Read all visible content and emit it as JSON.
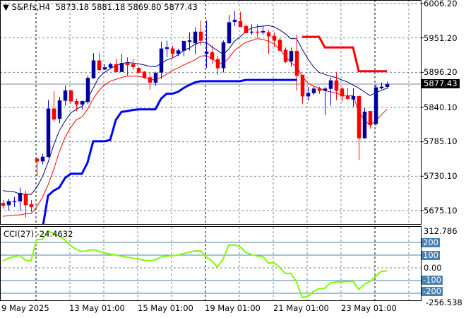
{
  "header": {
    "symbol": "S&P.fs,H4",
    "open": "5873.18",
    "high": "5881.18",
    "low": "5869.80",
    "close": "5877.43",
    "menu_icon": "triangle-down-icon"
  },
  "price_axis": {
    "labels": [
      "6006.20",
      "5951.20",
      "5896.20",
      "5840.10",
      "5785.10",
      "5730.10",
      "5675.10"
    ],
    "current": "5877.43"
  },
  "cci": {
    "label": "CCI(27) -24.4632",
    "max": "312.786",
    "min": "-256.538",
    "levels": [
      "200",
      "100",
      "0.00",
      "-100",
      "-200"
    ]
  },
  "time_axis": {
    "labels": [
      "9 May 2025",
      "13 May 01:00",
      "15 May 01:00",
      "19 May 01:00",
      "21 May 01:00",
      "23 May 01:00"
    ]
  },
  "colors": {
    "bull": "#00008b",
    "bear": "#ff0000",
    "ma_fast": "#00007f",
    "ma_slow": "#ff0000",
    "step_blue": "#0000ff",
    "step_red": "#ff0000",
    "cci": "#7cfc00",
    "level": "#4682b4",
    "grid": "#778899"
  },
  "chart_data": [
    {
      "type": "candlestick",
      "title": "S&P.fs,H4",
      "ylim": [
        5675.1,
        6006.2
      ],
      "grid": true,
      "x_tick_labels": [
        "9 May 2025",
        "13 May 01:00",
        "15 May 01:00",
        "19 May 01:00",
        "21 May 01:00",
        "23 May 01:00"
      ],
      "candles_ohlc": [
        [
          5687,
          5692,
          5678,
          5683
        ],
        [
          5684,
          5694,
          5675,
          5690
        ],
        [
          5689,
          5697,
          5681,
          5690
        ],
        [
          5690,
          5712,
          5675,
          5703
        ],
        [
          5702,
          5707,
          5664,
          5684
        ],
        [
          5685,
          5692,
          5673,
          5681
        ],
        [
          5758,
          5759,
          5730,
          5754
        ],
        [
          5754,
          5766,
          5749,
          5761
        ],
        [
          5761,
          5852,
          5760,
          5838
        ],
        [
          5838,
          5866,
          5817,
          5821
        ],
        [
          5822,
          5857,
          5815,
          5851
        ],
        [
          5851,
          5875,
          5843,
          5867
        ],
        [
          5867,
          5868,
          5846,
          5850
        ],
        [
          5850,
          5854,
          5834,
          5845
        ],
        [
          5845,
          5851,
          5837,
          5850
        ],
        [
          5849,
          5891,
          5845,
          5887
        ],
        [
          5887,
          5927,
          5886,
          5915
        ],
        [
          5915,
          5927,
          5899,
          5900
        ],
        [
          5901,
          5909,
          5900,
          5904
        ],
        [
          5904,
          5911,
          5902,
          5909
        ],
        [
          5909,
          5918,
          5896,
          5897
        ],
        [
          5897,
          5926,
          5897,
          5911
        ],
        [
          5911,
          5920,
          5891,
          5908
        ],
        [
          5909,
          5918,
          5900,
          5905
        ],
        [
          5903,
          5905,
          5894,
          5896
        ],
        [
          5897,
          5898,
          5886,
          5888
        ],
        [
          5888,
          5896,
          5868,
          5880
        ],
        [
          5880,
          5897,
          5875,
          5895
        ],
        [
          5896,
          5945,
          5886,
          5934
        ],
        [
          5934,
          5947,
          5920,
          5936
        ],
        [
          5934,
          5939,
          5920,
          5926
        ],
        [
          5926,
          5934,
          5922,
          5931
        ],
        [
          5931,
          5947,
          5922,
          5946
        ],
        [
          5945,
          5960,
          5931,
          5947
        ],
        [
          5943,
          5968,
          5925,
          5961
        ],
        [
          5961,
          5979,
          5939,
          5947
        ],
        [
          5926,
          5979,
          5903,
          5929
        ],
        [
          5928,
          5939,
          5909,
          5917
        ],
        [
          5917,
          5922,
          5892,
          5903
        ],
        [
          5903,
          5947,
          5896,
          5944
        ],
        [
          5943,
          5988,
          5942,
          5976
        ],
        [
          5977,
          5994,
          5970,
          5980
        ],
        [
          5978,
          5993,
          5969,
          5969
        ],
        [
          5970,
          5973,
          5959,
          5959
        ],
        [
          5960,
          5973,
          5956,
          5961
        ],
        [
          5961,
          5973,
          5952,
          5960
        ],
        [
          5960,
          5971,
          5956,
          5962
        ],
        [
          5960,
          5964,
          5926,
          5954
        ],
        [
          5954,
          5960,
          5937,
          5947
        ],
        [
          5948,
          5951,
          5931,
          5931
        ],
        [
          5932,
          5936,
          5911,
          5913
        ],
        [
          5914,
          5936,
          5905,
          5930
        ],
        [
          5930,
          5956,
          5867,
          5891
        ],
        [
          5892,
          5892,
          5846,
          5858
        ],
        [
          5858,
          5873,
          5851,
          5863
        ],
        [
          5863,
          5873,
          5860,
          5870
        ],
        [
          5870,
          5873,
          5862,
          5867
        ],
        [
          5867,
          5873,
          5828,
          5870
        ],
        [
          5870,
          5888,
          5843,
          5883
        ],
        [
          5883,
          5896,
          5852,
          5867
        ],
        [
          5870,
          5873,
          5849,
          5858
        ],
        [
          5858,
          5871,
          5852,
          5854
        ],
        [
          5853,
          5871,
          5841,
          5858
        ],
        [
          5858,
          5859,
          5756,
          5791
        ],
        [
          5791,
          5839,
          5790,
          5833
        ],
        [
          5834,
          5834,
          5806,
          5812
        ],
        [
          5814,
          5877,
          5811,
          5872
        ],
        [
          5871,
          5880,
          5869,
          5873
        ],
        [
          5873.18,
          5881.18,
          5869.8,
          5877.43
        ]
      ],
      "ma_fast": [
        5707,
        5706,
        5705,
        5702,
        5701,
        5701,
        5712,
        5729,
        5752,
        5780,
        5803,
        5818,
        5831,
        5837,
        5842,
        5854,
        5871,
        5888,
        5896,
        5902,
        5907,
        5910,
        5912,
        5911,
        5910,
        5908,
        5906,
        5905,
        5910,
        5916,
        5919,
        5924,
        5931,
        5935,
        5941,
        5944,
        5944,
        5937,
        5931,
        5925,
        5933,
        5946,
        5953,
        5961,
        5967,
        5969,
        5970,
        5971,
        5969,
        5964,
        5958,
        5950,
        5950,
        5933,
        5918,
        5905,
        5896,
        5893,
        5890,
        5888,
        5884,
        5881,
        5876,
        5871,
        5865,
        5859,
        5864,
        5867,
        5871
      ],
      "ma_slow": [
        5666,
        5667,
        5668,
        5668,
        5670,
        5670,
        5681,
        5696,
        5716,
        5741,
        5769,
        5792,
        5808,
        5820,
        5825,
        5837,
        5854,
        5867,
        5876,
        5882,
        5885,
        5888,
        5890,
        5890,
        5890,
        5888,
        5885,
        5884,
        5888,
        5893,
        5899,
        5903,
        5908,
        5912,
        5916,
        5922,
        5923,
        5918,
        5912,
        5910,
        5919,
        5931,
        5938,
        5944,
        5947,
        5950,
        5949,
        5946,
        5942,
        5933,
        5922,
        5912,
        5905,
        5890,
        5879,
        5874,
        5871,
        5867,
        5865,
        5863,
        5860,
        5859,
        5859,
        5834,
        5820,
        5812,
        5818,
        5828,
        5837
      ],
      "step_blue": [
        null,
        null,
        null,
        null,
        null,
        null,
        null,
        5645,
        5699,
        5707,
        5712,
        5727,
        5734,
        5734,
        5734,
        5752,
        5786,
        5786,
        5786,
        5788,
        5820,
        5833,
        5834,
        5836,
        5837,
        5837,
        5837,
        5837,
        5854,
        5862,
        5862,
        5865,
        5871,
        5876,
        5880,
        5882,
        5882,
        5882,
        5882,
        5882,
        5882,
        5882,
        5882,
        5884,
        5884,
        5884,
        5884,
        5884,
        5884,
        5884,
        5884,
        5884,
        5884,
        null,
        null,
        null,
        null,
        null,
        null,
        null,
        null,
        null,
        null,
        null,
        null,
        null,
        null,
        null,
        null
      ],
      "step_red": [
        null,
        null,
        null,
        null,
        null,
        null,
        null,
        null,
        null,
        null,
        null,
        null,
        null,
        null,
        null,
        null,
        null,
        null,
        null,
        null,
        null,
        null,
        null,
        null,
        null,
        null,
        null,
        null,
        null,
        null,
        null,
        null,
        null,
        null,
        null,
        null,
        null,
        null,
        null,
        null,
        null,
        null,
        null,
        null,
        null,
        null,
        null,
        null,
        null,
        null,
        null,
        null,
        null,
        5953,
        5953,
        5953,
        5953,
        5936,
        5936,
        5936,
        5936,
        5936,
        5936,
        5898,
        5898,
        5898,
        5898,
        5898,
        5898
      ]
    },
    {
      "type": "line",
      "title": "CCI(27) -24.4632",
      "ylim": [
        -256.538,
        312.786
      ],
      "levels": [
        200,
        100,
        0,
        -100,
        -200
      ],
      "values": [
        55,
        75,
        88,
        98,
        60,
        55,
        222,
        222,
        289,
        270,
        250,
        220,
        172,
        145,
        128,
        135,
        144,
        130,
        117,
        108,
        100,
        92,
        84,
        76,
        68,
        60,
        55,
        62,
        85,
        92,
        96,
        100,
        112,
        122,
        133,
        133,
        85,
        55,
        6,
        70,
        178,
        180,
        165,
        122,
        105,
        93,
        89,
        39,
        39,
        5,
        -44,
        -44,
        -110,
        -233,
        -225,
        -185,
        -163,
        -161,
        -117,
        -113,
        -110,
        -108,
        -106,
        -170,
        -130,
        -108,
        -67,
        -28,
        -24.4632
      ]
    }
  ]
}
